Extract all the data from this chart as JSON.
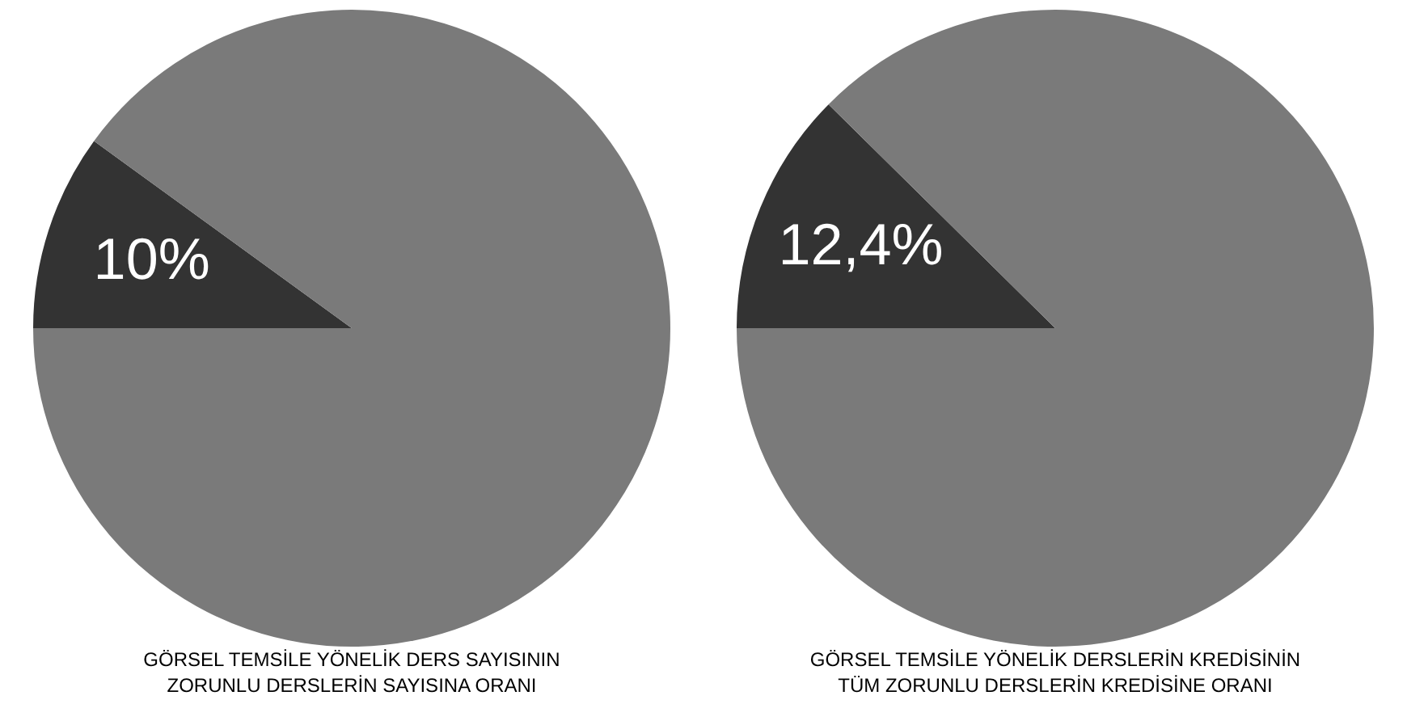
{
  "chart_data": [
    {
      "type": "pie",
      "title": "GÖRSEL TEMSİLE YÖNELİK DERS SAYISININ\nZORUNLU DERSLERİN SAYISINA ORANI",
      "categories": [
        null,
        null
      ],
      "values": [
        10,
        90
      ],
      "colors": [
        "#333333",
        "#7a7a7a"
      ],
      "value_labels": [
        "10%",
        null
      ],
      "legend": false
    },
    {
      "type": "pie",
      "title": "GÖRSEL TEMSİLE YÖNELİK DERSLERİN KREDİSİNİN\nTÜM ZORUNLU DERSLERİN KREDİSİNE ORANI",
      "categories": [
        null,
        null
      ],
      "values": [
        12.4,
        87.6
      ],
      "colors": [
        "#333333",
        "#7a7a7a"
      ],
      "value_labels": [
        "12,4%",
        null
      ],
      "legend": false
    }
  ]
}
